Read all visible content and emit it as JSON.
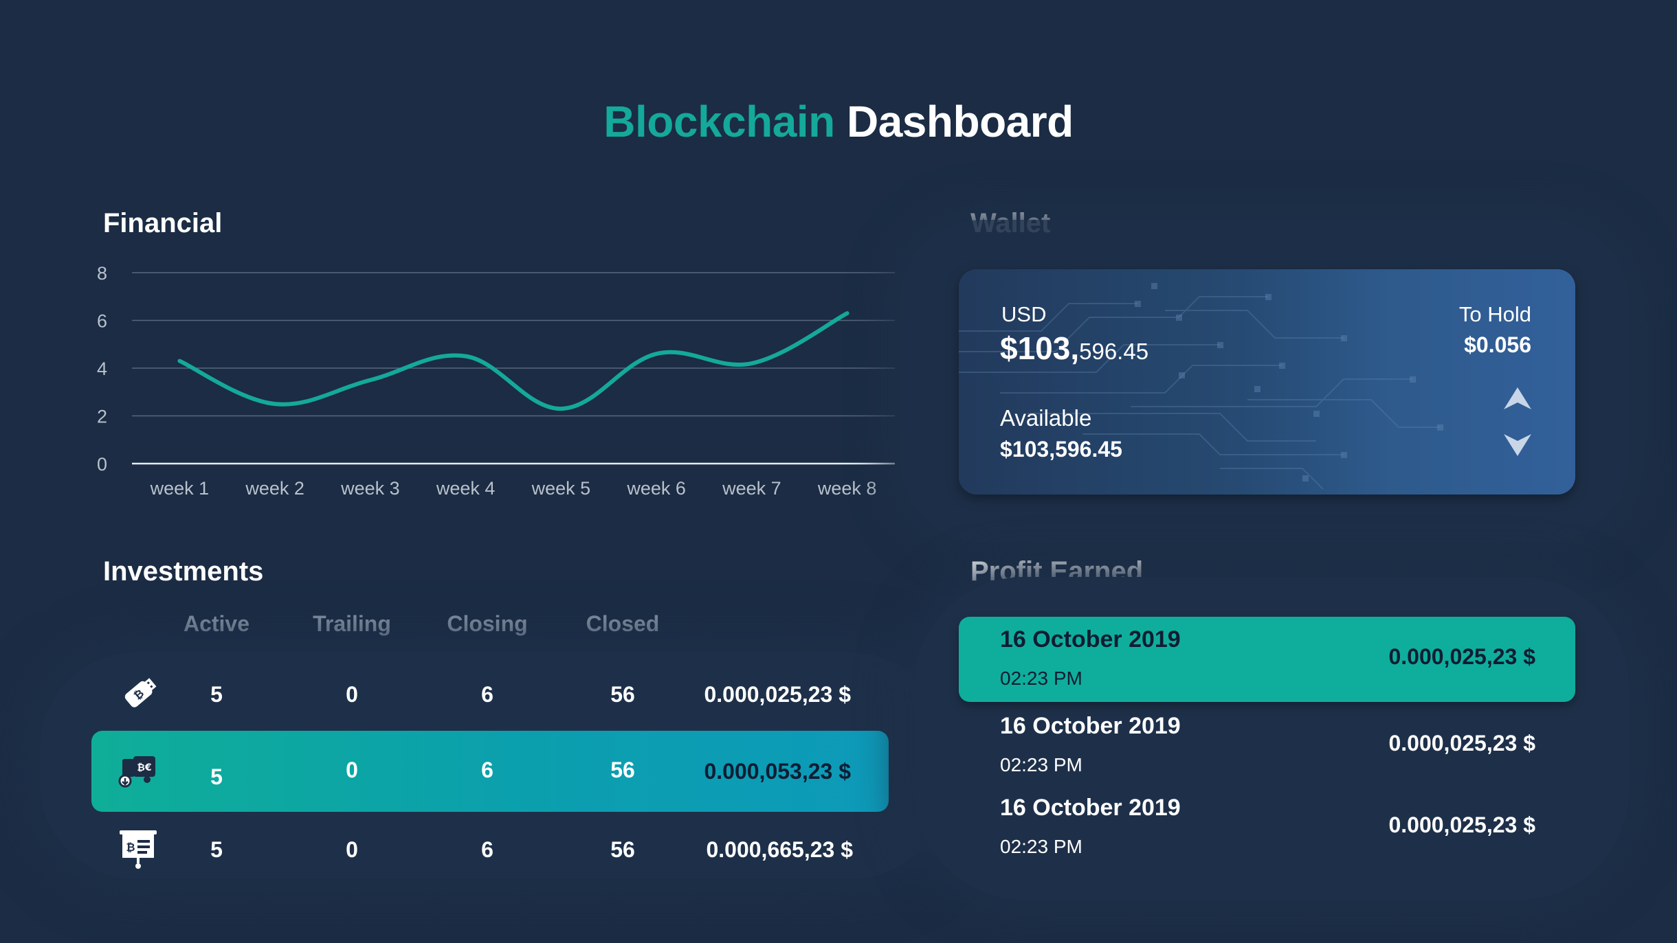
{
  "header": {
    "title_accent": "Blockchain",
    "title_rest": "Dashboard",
    "accent_color": "#14a99a"
  },
  "financial": {
    "title": "Financial",
    "chart_data": {
      "type": "line",
      "categories": [
        "week 1",
        "week 2",
        "week 3",
        "week 4",
        "week 5",
        "week 6",
        "week 7",
        "week 8"
      ],
      "series": [
        {
          "values": [
            4.3,
            2.5,
            3.5,
            4.5,
            2.3,
            4.6,
            4.2,
            6.3
          ],
          "color": "#14a99a"
        }
      ],
      "yticks": [
        0,
        2,
        4,
        6,
        8
      ],
      "ylim": [
        0,
        8
      ],
      "grid": true,
      "smooth": true
    }
  },
  "wallet": {
    "title": "Wallet",
    "usd_label": "USD",
    "usd_value_main": "$103,",
    "usd_value_small": "596.45",
    "available_label": "Available",
    "available_value": "$103,596.45",
    "hold_label": "To Hold",
    "hold_value": "$0.056",
    "up_icon": "arrow-up-icon",
    "down_icon": "arrow-down-icon"
  },
  "investments": {
    "title": "Investments",
    "columns": [
      "Active",
      "Trailing",
      "Closing",
      "Closed"
    ],
    "rows": [
      {
        "icon": "usb-drive-icon",
        "active": "5",
        "trailing": "0",
        "closing": "6",
        "closed": "56",
        "amount": "0.000,025,23 $",
        "highlight": false
      },
      {
        "icon": "crypto-truck-icon",
        "active": "5",
        "trailing": "0",
        "closing": "6",
        "closed": "56",
        "amount": "0.000,053,23 $",
        "highlight": true
      },
      {
        "icon": "presentation-board-icon",
        "active": "5",
        "trailing": "0",
        "closing": "6",
        "closed": "56",
        "amount": "0.000,665,23 $",
        "highlight": false
      }
    ]
  },
  "profit": {
    "title": "Profit Earned",
    "rows": [
      {
        "date": "16 October 2019",
        "time": "02:23 PM",
        "amount": "0.000,025,23 $",
        "highlight": true
      },
      {
        "date": "16 October 2019",
        "time": "02:23 PM",
        "amount": "0.000,025,23 $",
        "highlight": false
      },
      {
        "date": "16 October 2019",
        "time": "02:23 PM",
        "amount": "0.000,025,23 $",
        "highlight": false
      }
    ]
  }
}
